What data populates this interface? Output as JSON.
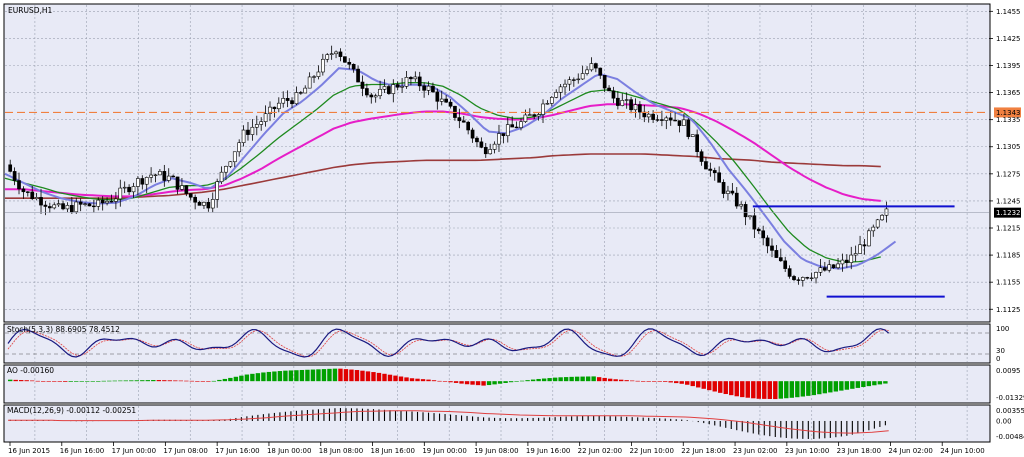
{
  "chart_data": {
    "type": "candlestick",
    "title": "EURUSD,H1",
    "colors": {
      "background": "#e8eaf6",
      "grid": "#9aa0b0",
      "bull": "#ffffff",
      "bear": "#000000",
      "ma_fast": "#7b7fe0",
      "ma_mid": "#1e8a1e",
      "ma_slow": "#e61ec8",
      "ma_long": "#9b3a3a",
      "hline_dashed": "#f08040",
      "hline_solid": "#1010d0",
      "ao_up": "#00a000",
      "ao_down": "#e00000"
    },
    "y_ticks": [
      "1.1455",
      "1.1425",
      "1.1395",
      "1.1365",
      "1.1335",
      "1.1305",
      "1.1275",
      "1.1245",
      "1.1215",
      "1.1185",
      "1.1155",
      "1.1125"
    ],
    "ylim": [
      1.1112,
      1.1462
    ],
    "current_price": "1.1232",
    "dashed_level": "1.1343",
    "x_labels": [
      "16 Jun 2015",
      "16 Jun 16:00",
      "17 Jun 00:00",
      "17 Jun 08:00",
      "17 Jun 16:00",
      "18 Jun 00:00",
      "18 Jun 08:00",
      "18 Jun 16:00",
      "19 Jun 00:00",
      "19 Jun 08:00",
      "19 Jun 16:00",
      "22 Jun 02:00",
      "22 Jun 10:00",
      "22 Jun 18:00",
      "23 Jun 02:00",
      "23 Jun 10:00",
      "23 Jun 18:00",
      "24 Jun 02:00",
      "24 Jun 10:00"
    ],
    "support_resistance": [
      {
        "price": 1.1239,
        "from": 0.76,
        "to": 0.965
      },
      {
        "price": 1.1139,
        "from": 0.835,
        "to": 0.955
      }
    ],
    "price_path": [
      1.1285,
      1.1255,
      1.1245,
      1.1235,
      1.124,
      1.124,
      1.125,
      1.1265,
      1.1275,
      1.127,
      1.125,
      1.124,
      1.1285,
      1.132,
      1.1335,
      1.1355,
      1.136,
      1.139,
      1.1415,
      1.1385,
      1.136,
      1.137,
      1.138,
      1.137,
      1.135,
      1.133,
      1.13,
      1.132,
      1.133,
      1.1345,
      1.137,
      1.138,
      1.1395,
      1.136,
      1.135,
      1.134,
      1.134,
      1.133,
      1.129,
      1.126,
      1.124,
      1.121,
      1.118,
      1.116,
      1.1165,
      1.117,
      1.118,
      1.1205,
      1.1232
    ],
    "ma_fast": [
      1.1275,
      1.1265,
      1.1255,
      1.1248,
      1.1244,
      1.1242,
      1.1243,
      1.125,
      1.1262,
      1.127,
      1.1265,
      1.1258,
      1.1272,
      1.1296,
      1.132,
      1.1342,
      1.1355,
      1.1372,
      1.1392,
      1.139,
      1.1378,
      1.1372,
      1.1374,
      1.1372,
      1.136,
      1.1342,
      1.1322,
      1.132,
      1.1327,
      1.134,
      1.1358,
      1.1372,
      1.1386,
      1.138,
      1.1365,
      1.1352,
      1.1344,
      1.1336,
      1.131,
      1.128,
      1.1255,
      1.1228,
      1.12,
      1.118,
      1.1172,
      1.117,
      1.1174,
      1.1185,
      1.12
    ],
    "ma_mid": [
      1.127,
      1.1265,
      1.126,
      1.1254,
      1.125,
      1.1247,
      1.1246,
      1.1248,
      1.1254,
      1.126,
      1.1262,
      1.1262,
      1.1268,
      1.1282,
      1.1298,
      1.1315,
      1.133,
      1.1345,
      1.1362,
      1.1372,
      1.1374,
      1.1374,
      1.1376,
      1.1376,
      1.1372,
      1.1362,
      1.1348,
      1.134,
      1.1336,
      1.1338,
      1.1346,
      1.1356,
      1.1366,
      1.1368,
      1.1364,
      1.1358,
      1.1352,
      1.1346,
      1.133,
      1.131,
      1.1288,
      1.1262,
      1.1235,
      1.121,
      1.1192,
      1.1182,
      1.1177,
      1.1178,
      1.1183
    ],
    "ma_slow": [
      1.1258,
      1.1258,
      1.1256,
      1.1254,
      1.1252,
      1.1251,
      1.125,
      1.125,
      1.1252,
      1.1255,
      1.1257,
      1.1258,
      1.1262,
      1.127,
      1.128,
      1.1292,
      1.1303,
      1.1314,
      1.1325,
      1.1332,
      1.1336,
      1.1339,
      1.1342,
      1.1344,
      1.1344,
      1.1342,
      1.1338,
      1.1336,
      1.1335,
      1.1336,
      1.134,
      1.1345,
      1.135,
      1.1352,
      1.1352,
      1.1351,
      1.135,
      1.1348,
      1.1342,
      1.1333,
      1.1322,
      1.131,
      1.1296,
      1.1282,
      1.127,
      1.126,
      1.1252,
      1.1247,
      1.1245
    ],
    "ma_long": [
      1.1248,
      1.1248,
      1.1248,
      1.1248,
      1.1248,
      1.1248,
      1.1248,
      1.1249,
      1.125,
      1.1251,
      1.1253,
      1.1255,
      1.1258,
      1.1262,
      1.1266,
      1.127,
      1.1274,
      1.1278,
      1.1282,
      1.1285,
      1.1287,
      1.1288,
      1.1289,
      1.129,
      1.129,
      1.129,
      1.129,
      1.1291,
      1.1292,
      1.1293,
      1.1295,
      1.1296,
      1.1297,
      1.1297,
      1.1297,
      1.1297,
      1.1296,
      1.1295,
      1.1294,
      1.1292,
      1.1291,
      1.129,
      1.1288,
      1.1287,
      1.1286,
      1.1285,
      1.1284,
      1.1284,
      1.1283
    ],
    "panels": {
      "stoch": {
        "label": "Stoch(5,3,3) 88.6905 78.4512",
        "ticks": [
          "100",
          "30",
          "0"
        ],
        "levels": [
          80,
          20
        ]
      },
      "ao": {
        "label": "AO -0.00160",
        "ticks": [
          "0.0095",
          "-0.01329"
        ],
        "values": [
          0.001,
          0.0006,
          -0.0002,
          -0.0005,
          -0.0004,
          0.0002,
          0.0004,
          0.0006,
          0.0008,
          0.0005,
          0.0002,
          -0.0002,
          0.002,
          0.0045,
          0.006,
          0.007,
          0.0075,
          0.008,
          0.0085,
          0.0075,
          0.006,
          0.004,
          0.002,
          0.001,
          -0.0005,
          -0.002,
          -0.003,
          -0.0015,
          0.0002,
          0.0015,
          0.0025,
          0.003,
          0.0032,
          0.0015,
          0.0005,
          -0.0002,
          -0.0005,
          -0.002,
          -0.005,
          -0.008,
          -0.0105,
          -0.0118,
          -0.012,
          -0.011,
          -0.0095,
          -0.0075,
          -0.0055,
          -0.0035,
          -0.0016
        ]
      },
      "macd": {
        "label": "MACD(12,26,9) -0.00112 -0.00251",
        "ticks": [
          "0.00355",
          "0.00",
          "-0.00484"
        ],
        "values": [
          0.0003,
          0.0002,
          0.0001,
          0.0,
          -0.0001,
          0.0,
          0.0001,
          0.0002,
          0.0003,
          0.0003,
          0.0002,
          0.0001,
          0.0005,
          0.0012,
          0.0018,
          0.0023,
          0.0027,
          0.003,
          0.0033,
          0.0032,
          0.003,
          0.0027,
          0.0024,
          0.0021,
          0.0017,
          0.0013,
          0.0009,
          0.0007,
          0.0007,
          0.0008,
          0.001,
          0.0012,
          0.0014,
          0.0012,
          0.001,
          0.0008,
          0.0006,
          0.0003,
          -0.0005,
          -0.0015,
          -0.0025,
          -0.0034,
          -0.0041,
          -0.0045,
          -0.0046,
          -0.0043,
          -0.0037,
          -0.0025,
          -0.0011
        ],
        "signal": [
          0.0002,
          0.0002,
          0.0002,
          0.0001,
          0.0001,
          0.0001,
          0.0001,
          0.0001,
          0.0002,
          0.0002,
          0.0002,
          0.0002,
          0.0003,
          0.0005,
          0.0008,
          0.0012,
          0.0015,
          0.0018,
          0.0021,
          0.0024,
          0.0025,
          0.0026,
          0.0026,
          0.0025,
          0.0024,
          0.0022,
          0.0019,
          0.0017,
          0.0015,
          0.0014,
          0.0013,
          0.0013,
          0.0013,
          0.0013,
          0.0013,
          0.0012,
          0.0011,
          0.001,
          0.0007,
          0.0003,
          -0.0002,
          -0.0009,
          -0.0016,
          -0.0022,
          -0.0027,
          -0.003,
          -0.0031,
          -0.0029,
          -0.0025
        ]
      }
    }
  }
}
